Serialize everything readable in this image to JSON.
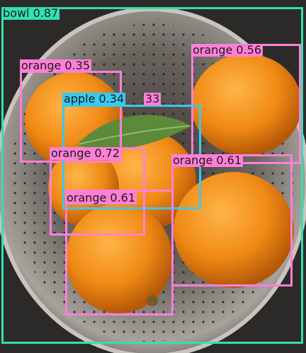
{
  "detections": [
    {
      "label": "bowl",
      "score": "0.87",
      "color": "#33e0b0"
    },
    {
      "label": "orange",
      "score": "0.35",
      "color": "#ff7fd8"
    },
    {
      "label": "orange",
      "score": "0.56",
      "color": "#ff7fd8"
    },
    {
      "label": "apple",
      "score": "0.34",
      "color": "#38c9f0"
    },
    {
      "label": "",
      "score": "33",
      "color": "#ff7fd8"
    },
    {
      "label": "orange",
      "score": "0.72",
      "color": "#ff7fd8"
    },
    {
      "label": "orange",
      "score": "0.61",
      "color": "#ff7fd8"
    },
    {
      "label": "orange",
      "score": "0.61",
      "color": "#ff7fd8"
    }
  ]
}
